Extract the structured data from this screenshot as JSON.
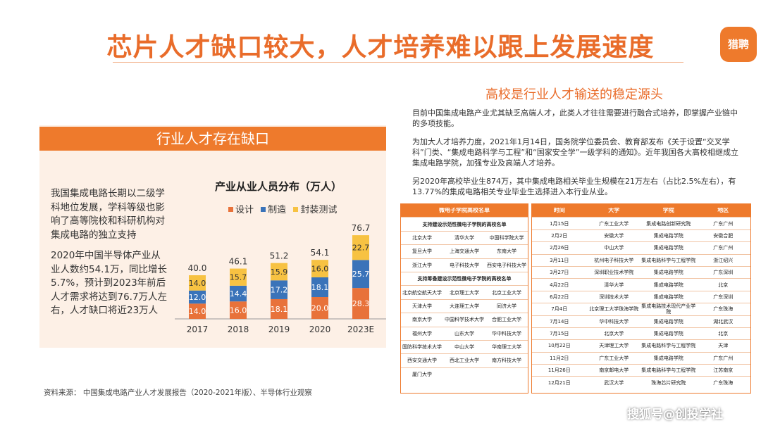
{
  "title": "芯片人才缺口较大，人才培养难以跟上发展速度",
  "logo_text": "猎聘",
  "left_panel": {
    "header": "行业人才存在缺口",
    "para1": "我国集成电路长期以二级学科地位发展，学科等级也影响了高等院校和科研机构对集成电路的独立支持",
    "para2": "2020年中国半导体产业从业人数约54.1万，同比增长5.7%，预计到2023年前后人才需求将达到76.7万人左右，人才缺口将近23万人"
  },
  "chart_data": {
    "type": "bar",
    "title": "产业从业人员分布（万人）",
    "categories": [
      "2017",
      "2018",
      "2019",
      "2020",
      "2023E"
    ],
    "series": [
      {
        "name": "设计",
        "color": "#e8723a",
        "values": [
          14.0,
          16.0,
          18.1,
          20.0,
          28.3
        ]
      },
      {
        "name": "制造",
        "color": "#3a73b9",
        "values": [
          12.0,
          14.4,
          17.2,
          18.1,
          25.7
        ]
      },
      {
        "name": "封装测试",
        "color": "#f7c242",
        "values": [
          14.0,
          15.7,
          15.9,
          16.0,
          22.7
        ]
      }
    ],
    "totals": [
      "40.0",
      "46.1",
      "51.2",
      "54.1",
      "76.7"
    ],
    "labels": [
      [
        "14.0",
        "16.0",
        "18.1",
        "20.0",
        "28.3"
      ],
      [
        "12.0",
        "14.4",
        "17.2",
        "18.1",
        "25.7"
      ],
      [
        "14.0",
        "15.7",
        "15.9",
        "16.0",
        "22.7"
      ]
    ],
    "ylim": [
      0,
      80
    ]
  },
  "source": "资料来源：  中国集成电路产业人才发展报告（2020-2021年版）、半导体行业观察",
  "right": {
    "title": "高校是行业人才输送的稳定源头",
    "para1": "目前中国集成电路产业尤其缺乏高端人才，此类人才往往需要进行融合式培养，即掌握产业链中的多项技能。",
    "para2": "为加大人才培养力度，2021年1月14日，国务院学位委员会、教育部发布《关于设置“交叉学科”门类、“集成电路科学与工程”和“国家安全学”一级学科的通知》。近年我国各大高校相继成立集成电路学院，加强专业及高端人才培养。",
    "para3": "另2020年高校毕业生874万，其中集成电路相关毕业生规模在21万左右（占比2.5%左右），有13.77%的集成电路相关专业毕业生选择进入本行业从业。"
  },
  "table1": {
    "header": "微电子学院高校名单",
    "sub1": "支持建设示范性微电子学院的高校名单",
    "rows1": [
      [
        "北京大学",
        "清华大学",
        "中国科学院大学"
      ],
      [
        "复旦大学",
        "上海交通大学",
        "东南大学"
      ],
      [
        "浙江大学",
        "电子科技大学",
        "西安电子科技大学"
      ]
    ],
    "sub2": "支持筹备建设示范性微电子学院的高校名单",
    "rows2": [
      [
        "北京航空航天大学",
        "北京理工大学",
        "北京工业大学"
      ],
      [
        "天津大学",
        "大连理工大学",
        "同济大学"
      ],
      [
        "南京大学",
        "中国科学技术大学",
        "合肥工业大学"
      ],
      [
        "福州大学",
        "山东大学",
        "华中科技大学"
      ],
      [
        "国防科学技术大学",
        "中山大学",
        "华南理工大学"
      ],
      [
        "西安交通大学",
        "西北工业大学",
        "南方科技大学"
      ],
      [
        "厦门大学",
        "",
        ""
      ]
    ]
  },
  "table2": {
    "headers": [
      "时间",
      "大学",
      "学院",
      "地区"
    ],
    "rows": [
      [
        "1月15日",
        "广东工业大学",
        "集成电路创新研究院",
        "广东广州"
      ],
      [
        "2月2日",
        "安徽大学",
        "集成电路学院",
        "安徽合肥"
      ],
      [
        "2月26日",
        "中山大学",
        "集成电路学院",
        "广东广州"
      ],
      [
        "3月11日",
        "杭州电子科技大学",
        "集成电路科学与工程学院",
        "浙江绍兴"
      ],
      [
        "3月27日",
        "深圳职业技术学院",
        "集成电路学院",
        "广东深圳"
      ],
      [
        "4月22日",
        "清华大学",
        "集成电路学院",
        "北京"
      ],
      [
        "6月22日",
        "深圳技术大学",
        "集成电路学院",
        "广东深圳"
      ],
      [
        "7月4日",
        "北京理工大学珠海学院",
        "集成电路技术现代产业学院",
        "广东珠海"
      ],
      [
        "7月14日",
        "华中科技大学",
        "集成电路学院",
        "湖北武汉"
      ],
      [
        "7月15日",
        "北京大学",
        "集成电路学院",
        "北京"
      ],
      [
        "10月22日",
        "天津理工大学",
        "集成电路科学与工程学院",
        "天津"
      ],
      [
        "11月2日",
        "广东工业大学",
        "集成电路学院",
        "广东广州"
      ],
      [
        "11月26日",
        "南京邮电大学",
        "集成电路科学与工程学院",
        "江苏南京"
      ],
      [
        "12月21日",
        "武汉大学",
        "珠海芯片研究院",
        "广东珠海"
      ]
    ]
  },
  "watermark": "搜狐号@创投学社"
}
